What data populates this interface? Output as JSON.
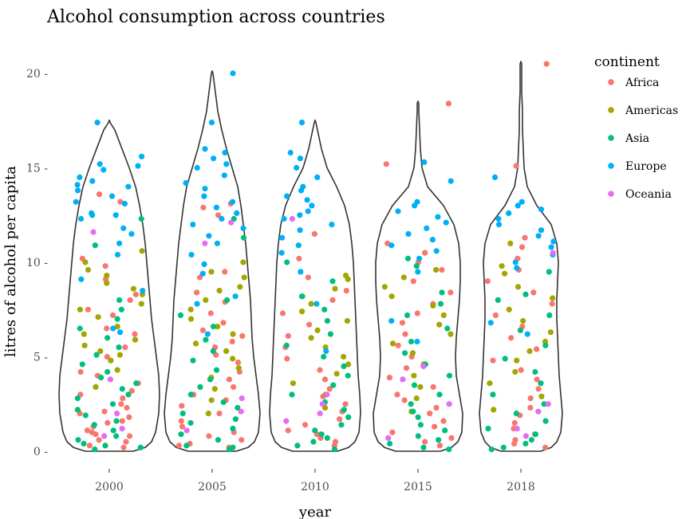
{
  "chart_data": {
    "type": "violin",
    "title": "Alcohol consumption across countries",
    "xlabel": "year",
    "ylabel": "litres of alcohol per capita",
    "categories": [
      "2000",
      "2005",
      "2010",
      "2015",
      "2018"
    ],
    "ylim": [
      0,
      20.5
    ],
    "yticks": [
      0,
      5,
      10,
      15,
      20
    ],
    "ytick_labels": [
      "0 -",
      "5 -",
      "10 -",
      "15 -",
      "20 -"
    ],
    "grid": false,
    "legend_position": "right",
    "legend": {
      "title": "continent",
      "entries": [
        {
          "name": "Africa",
          "color": "#F8766D"
        },
        {
          "name": "Americas",
          "color": "#A3A500"
        },
        {
          "name": "Asia",
          "color": "#00BF7D"
        },
        {
          "name": "Europe",
          "color": "#00B0F6"
        },
        {
          "name": "Oceania",
          "color": "#E76BF3"
        }
      ]
    },
    "max_values": [
      17.4,
      20.0,
      17.4,
      18.4,
      20.5
    ],
    "violins": [
      {
        "category": "2000",
        "profile": [
          [
            0,
            30
          ],
          [
            0.2,
            45
          ],
          [
            0.5,
            53
          ],
          [
            1,
            58
          ],
          [
            2,
            62
          ],
          [
            3,
            63
          ],
          [
            4,
            62
          ],
          [
            5,
            59
          ],
          [
            6,
            56
          ],
          [
            7,
            53
          ],
          [
            8,
            51
          ],
          [
            9,
            49
          ],
          [
            10,
            47
          ],
          [
            11,
            45
          ],
          [
            12,
            42
          ],
          [
            13,
            38
          ],
          [
            14,
            33
          ],
          [
            15,
            25
          ],
          [
            16,
            16
          ],
          [
            17,
            7
          ],
          [
            17.4,
            1
          ]
        ]
      },
      {
        "category": "2005",
        "profile": [
          [
            0,
            30
          ],
          [
            0.2,
            45
          ],
          [
            0.5,
            53
          ],
          [
            1,
            58
          ],
          [
            2,
            60
          ],
          [
            3,
            58
          ],
          [
            4,
            55
          ],
          [
            5,
            52
          ],
          [
            6,
            50
          ],
          [
            7,
            49
          ],
          [
            8,
            48
          ],
          [
            9,
            46
          ],
          [
            10,
            44
          ],
          [
            11,
            42
          ],
          [
            12,
            39
          ],
          [
            13,
            36
          ],
          [
            14,
            32
          ],
          [
            15,
            25
          ],
          [
            16,
            18
          ],
          [
            17,
            12
          ],
          [
            18,
            7
          ],
          [
            19,
            4
          ],
          [
            20,
            1
          ]
        ]
      },
      {
        "category": "2010",
        "profile": [
          [
            0,
            28
          ],
          [
            0.2,
            42
          ],
          [
            0.5,
            50
          ],
          [
            1,
            55
          ],
          [
            2,
            57
          ],
          [
            3,
            56
          ],
          [
            4,
            54
          ],
          [
            5,
            53
          ],
          [
            6,
            52
          ],
          [
            7,
            51
          ],
          [
            8,
            50
          ],
          [
            9,
            49
          ],
          [
            10,
            48
          ],
          [
            11,
            46
          ],
          [
            12,
            43
          ],
          [
            13,
            37
          ],
          [
            14,
            27
          ],
          [
            15,
            15
          ],
          [
            16,
            8
          ],
          [
            17,
            3
          ],
          [
            17.4,
            1
          ]
        ]
      },
      {
        "category": "2015",
        "profile": [
          [
            0,
            28
          ],
          [
            0.2,
            42
          ],
          [
            0.5,
            50
          ],
          [
            1,
            55
          ],
          [
            2,
            56
          ],
          [
            3,
            52
          ],
          [
            4,
            48
          ],
          [
            5,
            47
          ],
          [
            6,
            48
          ],
          [
            7,
            50
          ],
          [
            8,
            52
          ],
          [
            9,
            53
          ],
          [
            10,
            53
          ],
          [
            11,
            51
          ],
          [
            12,
            45
          ],
          [
            13,
            32
          ],
          [
            14,
            12
          ],
          [
            15,
            5
          ],
          [
            16,
            3
          ],
          [
            17,
            2
          ],
          [
            18,
            1
          ],
          [
            18.4,
            1
          ]
        ]
      },
      {
        "category": "2018",
        "profile": [
          [
            0,
            25
          ],
          [
            0.2,
            38
          ],
          [
            0.5,
            45
          ],
          [
            1,
            50
          ],
          [
            2,
            52
          ],
          [
            3,
            50
          ],
          [
            4,
            48
          ],
          [
            5,
            47
          ],
          [
            6,
            46
          ],
          [
            7,
            45
          ],
          [
            8,
            45
          ],
          [
            9,
            46
          ],
          [
            10,
            47
          ],
          [
            11,
            45
          ],
          [
            12,
            38
          ],
          [
            13,
            20
          ],
          [
            14,
            8
          ],
          [
            15,
            4
          ],
          [
            16,
            3
          ],
          [
            17,
            2
          ],
          [
            18,
            2
          ],
          [
            19,
            1
          ],
          [
            20,
            1
          ],
          [
            20.5,
            1
          ]
        ]
      }
    ],
    "points": [
      {
        "category": "2000",
        "values": {
          "Africa": [
            0.2,
            0.3,
            0.5,
            0.6,
            0.8,
            0.9,
            1.0,
            1.1,
            1.3,
            1.5,
            1.6,
            1.8,
            2.0,
            2.1,
            2.3,
            2.5,
            2.8,
            3.0,
            3.2,
            3.6,
            4.0,
            4.2,
            5.0,
            5.5,
            6.2,
            6.5,
            7.2,
            7.5,
            8.0,
            8.3,
            9.1,
            9.8,
            10.2,
            13.2,
            13.6
          ],
          "Americas": [
            3.4,
            4.3,
            4.8,
            5.1,
            5.3,
            5.6,
            5.9,
            6.2,
            6.6,
            7.1,
            7.5,
            7.8,
            8.3,
            8.6,
            8.9,
            9.3,
            9.6,
            10.0,
            10.6
          ],
          "Asia": [
            0.1,
            0.2,
            0.3,
            0.4,
            0.6,
            0.8,
            1.1,
            1.4,
            1.6,
            1.9,
            2.2,
            2.5,
            2.8,
            3.0,
            3.3,
            3.6,
            3.9,
            4.2,
            4.6,
            5.1,
            5.5,
            6.0,
            6.5,
            7.0,
            7.5,
            8.0,
            10.9,
            12.3
          ],
          "Europe": [
            6.3,
            6.5,
            8.5,
            9.1,
            10.4,
            11.0,
            11.5,
            11.8,
            12.3,
            12.5,
            12.5,
            12.6,
            13.1,
            13.2,
            13.5,
            13.8,
            14.0,
            14.1,
            14.3,
            14.5,
            14.9,
            15.1,
            15.2,
            15.6,
            17.4
          ],
          "Oceania": [
            0.8,
            1.2,
            2.0,
            3.8,
            11.6
          ]
        }
      },
      {
        "category": "2005",
        "values": {
          "Africa": [
            0.2,
            0.3,
            0.4,
            0.6,
            0.8,
            1.0,
            1.3,
            1.6,
            2.0,
            2.4,
            2.7,
            3.0,
            3.4,
            3.8,
            4.2,
            4.7,
            5.1,
            5.5,
            5.8,
            6.1,
            6.4,
            6.8,
            7.3,
            7.9,
            8.4,
            9.2,
            9.5,
            12.5,
            12.9,
            13.1
          ],
          "Americas": [
            2.0,
            2.7,
            3.3,
            3.9,
            4.4,
            4.9,
            5.3,
            5.7,
            6.2,
            6.6,
            7.0,
            7.5,
            8.0,
            8.5,
            8.7,
            9.2,
            9.5,
            10.0
          ],
          "Asia": [
            0.1,
            0.2,
            0.3,
            0.6,
            0.9,
            1.2,
            1.5,
            1.7,
            2.0,
            2.3,
            2.6,
            3.0,
            3.4,
            3.8,
            4.3,
            4.8,
            5.3,
            5.9,
            6.6,
            7.2,
            8.0,
            11.3,
            12.3
          ],
          "Europe": [
            6.2,
            7.8,
            8.2,
            9.4,
            9.9,
            10.4,
            11.0,
            11.4,
            11.8,
            12.0,
            12.3,
            12.6,
            12.9,
            13.2,
            13.5,
            13.9,
            14.2,
            14.6,
            15.0,
            15.2,
            15.5,
            15.8,
            16.0,
            17.4,
            20.0
          ],
          "Oceania": [
            1.1,
            2.1,
            2.8,
            11.0,
            12.1
          ]
        }
      },
      {
        "category": "2010",
        "values": {
          "Africa": [
            0.3,
            0.5,
            0.7,
            0.9,
            1.1,
            1.4,
            1.7,
            2.1,
            2.5,
            2.9,
            3.3,
            3.8,
            4.3,
            4.9,
            5.5,
            6.1,
            6.7,
            7.3,
            8.0,
            8.5,
            9.2,
            10.2,
            11.5
          ],
          "Americas": [
            2.3,
            3.0,
            3.6,
            4.1,
            4.6,
            5.0,
            5.5,
            6.0,
            6.4,
            6.9,
            7.4,
            7.8,
            8.2,
            8.6,
            9.1,
            9.3
          ],
          "Asia": [
            0.1,
            0.3,
            0.5,
            0.7,
            0.9,
            1.1,
            1.4,
            1.8,
            2.2,
            2.6,
            3.0,
            3.5,
            4.0,
            4.5,
            5.0,
            5.6,
            6.2,
            6.9,
            7.5,
            8.2,
            9.0,
            10.0
          ],
          "Europe": [
            5.3,
            7.8,
            9.5,
            10.5,
            10.9,
            11.3,
            11.7,
            12.0,
            12.3,
            12.5,
            12.7,
            13.0,
            13.3,
            13.5,
            13.8,
            14.0,
            14.5,
            15.0,
            15.5,
            15.8,
            17.4
          ],
          "Oceania": [
            1.6,
            2.0,
            2.5,
            3.0,
            12.3
          ]
        }
      },
      {
        "category": "2015",
        "values": {
          "Africa": [
            0.3,
            0.5,
            0.7,
            1.0,
            1.3,
            1.6,
            2.0,
            2.3,
            2.7,
            3.0,
            3.4,
            3.9,
            4.4,
            5.0,
            5.6,
            6.2,
            6.8,
            7.3,
            7.8,
            8.4,
            9.0,
            9.6,
            10.0,
            10.5,
            11.0,
            15.2,
            18.4
          ],
          "Americas": [
            2.1,
            2.8,
            3.4,
            4.0,
            4.6,
            5.2,
            5.7,
            6.2,
            6.7,
            7.2,
            7.7,
            8.2,
            8.7,
            9.2,
            9.6
          ],
          "Asia": [
            0.1,
            0.2,
            0.4,
            0.6,
            0.8,
            1.1,
            1.4,
            1.8,
            2.1,
            2.5,
            3.0,
            3.5,
            4.0,
            4.6,
            5.2,
            5.8,
            6.5,
            7.2,
            7.8,
            8.4,
            9.8,
            10.2
          ],
          "Europe": [
            5.8,
            6.9,
            9.5,
            10.2,
            10.6,
            10.9,
            11.2,
            11.5,
            11.8,
            12.1,
            12.4,
            12.7,
            13.0,
            13.2,
            14.3,
            15.3
          ],
          "Oceania": [
            0.7,
            2.5,
            3.8,
            4.5
          ]
        }
      },
      {
        "category": "2018",
        "values": {
          "Africa": [
            0.2,
            0.4,
            0.6,
            0.9,
            1.2,
            1.5,
            1.9,
            2.3,
            2.8,
            3.3,
            3.8,
            4.3,
            4.8,
            5.4,
            6.0,
            6.6,
            7.2,
            7.8,
            8.4,
            9.0,
            9.6,
            10.2,
            10.8,
            11.3,
            15.1,
            20.5
          ],
          "Americas": [
            2.2,
            2.9,
            3.6,
            4.2,
            4.8,
            5.3,
            5.8,
            6.3,
            6.9,
            7.5,
            8.1,
            8.7,
            9.4,
            9.8,
            11.0
          ],
          "Asia": [
            0.1,
            0.2,
            0.4,
            0.6,
            0.9,
            1.2,
            1.6,
            2.0,
            2.5,
            3.0,
            3.6,
            4.2,
            4.9,
            5.6,
            6.4,
            7.2,
            8.0,
            8.3,
            9.5
          ],
          "Europe": [
            6.2,
            6.8,
            9.7,
            10.0,
            10.4,
            10.8,
            11.1,
            11.4,
            11.7,
            12.0,
            12.3,
            12.6,
            12.8,
            13.0,
            13.2,
            14.5
          ],
          "Oceania": [
            0.8,
            1.2,
            2.1,
            2.5,
            10.5
          ]
        }
      }
    ]
  }
}
